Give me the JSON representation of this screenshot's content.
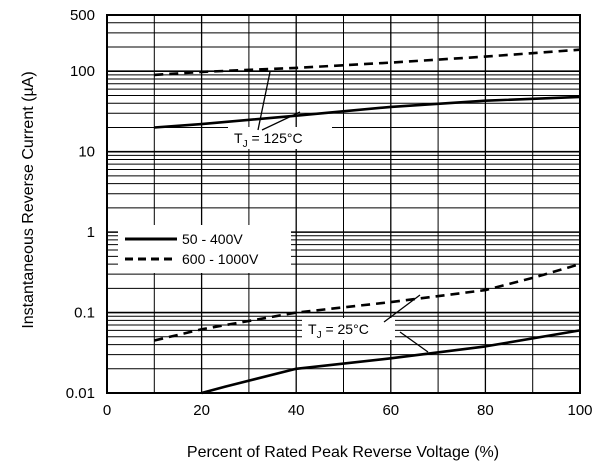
{
  "chart_data": {
    "type": "line",
    "title": "",
    "xlabel": "Percent of Rated Peak Reverse Voltage (%)",
    "ylabel": "Instantaneous Reverse Current (µA)",
    "xlim": [
      0,
      100
    ],
    "ylim": [
      0.01,
      500
    ],
    "yscale": "log",
    "grid": true,
    "x_ticks": [
      0,
      20,
      40,
      60,
      80,
      100
    ],
    "x_tick_labels": [
      "0",
      "20",
      "40",
      "60",
      "80",
      "100"
    ],
    "y_ticks": [
      0.01,
      0.1,
      1,
      10,
      100,
      500
    ],
    "y_tick_labels": [
      "0.01",
      "0.1",
      "1",
      "10",
      "100",
      "500"
    ],
    "legend": [
      {
        "label": "50 - 400V",
        "style": "solid"
      },
      {
        "label": "600 - 1000V",
        "style": "dashed"
      }
    ],
    "annotations": [
      {
        "text": "T",
        "sub": "J",
        "rest": " = 125°C"
      },
      {
        "text": "T",
        "sub": "J",
        "rest": " = 25°C"
      }
    ],
    "series": [
      {
        "group": "125C",
        "style": "dashed",
        "legend_index": 1,
        "x": [
          10,
          20,
          40,
          60,
          80,
          100
        ],
        "y": [
          90,
          98,
          110,
          128,
          152,
          185
        ]
      },
      {
        "group": "125C",
        "style": "solid",
        "legend_index": 0,
        "x": [
          10,
          20,
          40,
          60,
          80,
          100
        ],
        "y": [
          20,
          22,
          28,
          36,
          43,
          48
        ]
      },
      {
        "group": "25C",
        "style": "dashed",
        "legend_index": 1,
        "x": [
          10,
          20,
          40,
          60,
          80,
          90,
          100
        ],
        "y": [
          0.045,
          0.062,
          0.1,
          0.135,
          0.19,
          0.27,
          0.4
        ]
      },
      {
        "group": "25C",
        "style": "solid",
        "legend_index": 0,
        "x": [
          20,
          25,
          40,
          60,
          80,
          100
        ],
        "y": [
          0.01,
          0.012,
          0.02,
          0.027,
          0.038,
          0.06
        ]
      }
    ]
  }
}
